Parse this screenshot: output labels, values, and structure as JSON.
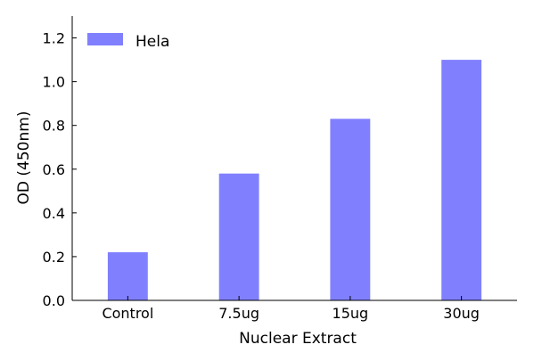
{
  "chart_data": {
    "type": "bar",
    "categories": [
      "Control",
      "7.5ug",
      "15ug",
      "30ug"
    ],
    "series": [
      {
        "name": "Hela",
        "values": [
          0.22,
          0.58,
          0.83,
          1.1
        ]
      }
    ],
    "xlabel": "Nuclear Extract",
    "ylabel": "OD (450nm)",
    "ylim": [
      0,
      1.3
    ],
    "yticks": [
      "0.0",
      "0.2",
      "0.4",
      "0.6",
      "0.8",
      "1.0",
      "1.2"
    ],
    "grid": false,
    "legend_position": "top-left",
    "bar_color": "#8080ff"
  }
}
